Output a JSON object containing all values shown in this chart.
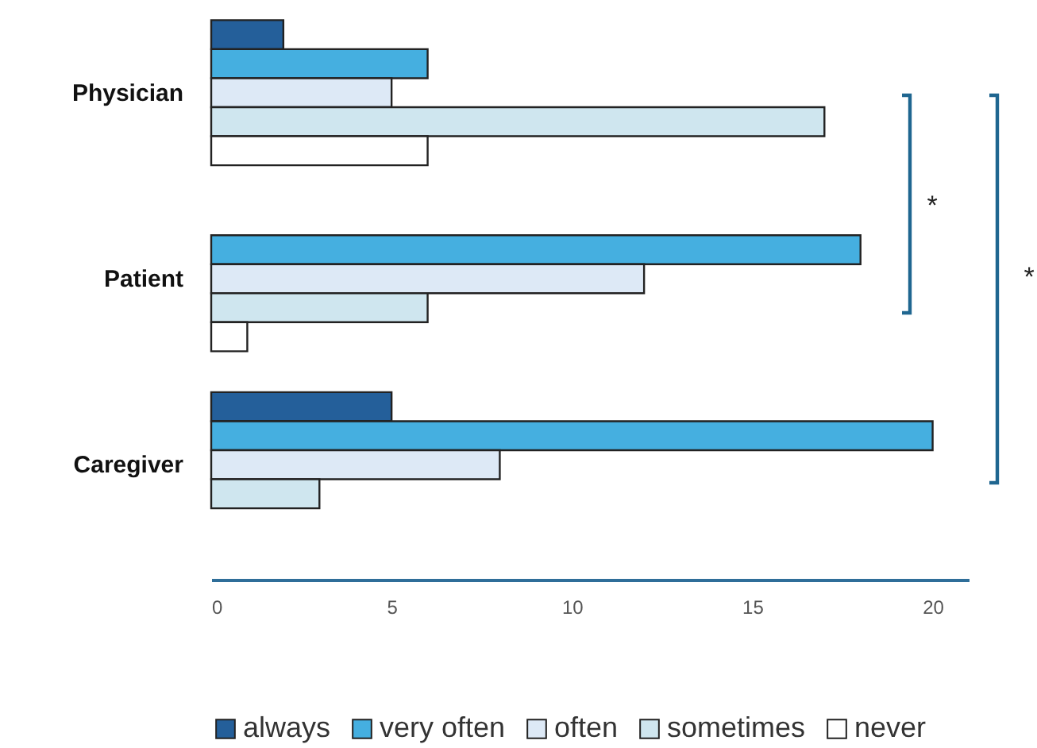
{
  "chart_data": {
    "type": "bar",
    "orientation": "horizontal",
    "categories": [
      "Physician",
      "Patient",
      "Caregiver"
    ],
    "series": [
      {
        "name": "always",
        "color": "#245f9a",
        "values": [
          2,
          null,
          5
        ]
      },
      {
        "name": "very often",
        "color": "#45afe0",
        "values": [
          6,
          18,
          20
        ]
      },
      {
        "name": "often",
        "color": "#dde9f6",
        "values": [
          5,
          12,
          8
        ]
      },
      {
        "name": "sometimes",
        "color": "#cfe6ef",
        "values": [
          17,
          6,
          3
        ]
      },
      {
        "name": "never",
        "color": "#ffffff",
        "values": [
          6,
          1,
          null
        ]
      }
    ],
    "xlim": [
      0,
      21
    ],
    "xticks": [
      0,
      5,
      10,
      15,
      20
    ],
    "grid": false,
    "legend": "bottom",
    "annotations": [
      "*",
      "*"
    ]
  }
}
